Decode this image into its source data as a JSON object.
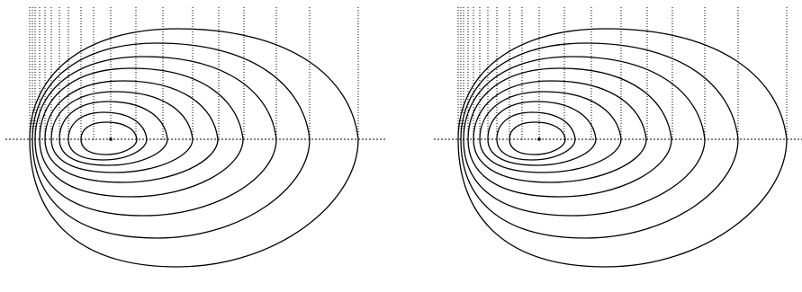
{
  "figure": {
    "panels": [
      {
        "id": "left",
        "style": "stereo-left"
      },
      {
        "id": "right",
        "style": "stereo-right"
      }
    ],
    "colors": {
      "background": "#ffffff",
      "curve": "#000000",
      "dotted": "#000000"
    },
    "orbit_count": 9,
    "icons": [
      "center-point-icon"
    ]
  }
}
